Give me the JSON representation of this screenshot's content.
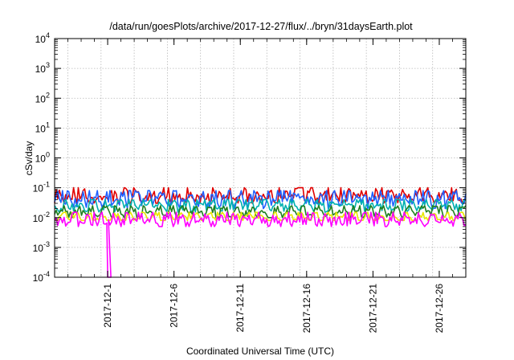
{
  "chart_data": {
    "type": "line",
    "title": "/data/run/goesPlots/archive/2017-12-27/flux/../bryn/31daysEarth.plot",
    "xlabel": "Coordinated Universal Time (UTC)",
    "ylabel": "cSv/day",
    "y_scale": "log",
    "ylim": [
      0.0001,
      10000
    ],
    "xlim": [
      "2017-11-27",
      "2017-12-28"
    ],
    "grid": true,
    "x_ticks": [
      "2017-12-1",
      "2017-12-6",
      "2017-12-11",
      "2017-12-16",
      "2017-12-21",
      "2017-12-26"
    ],
    "y_ticks": [
      {
        "base": "10",
        "exp": "-4"
      },
      {
        "base": "10",
        "exp": "-3"
      },
      {
        "base": "10",
        "exp": "-2"
      },
      {
        "base": "10",
        "exp": "-1"
      },
      {
        "base": "10",
        "exp": "0"
      },
      {
        "base": "10",
        "exp": "1"
      },
      {
        "base": "10",
        "exp": "2"
      },
      {
        "base": "10",
        "exp": "3"
      },
      {
        "base": "10",
        "exp": "4"
      }
    ],
    "series": [
      {
        "color": "#e00000",
        "typical": 0.05,
        "range": [
          0.03,
          0.1
        ]
      },
      {
        "color": "#2060ff",
        "typical": 0.04,
        "range": [
          0.02,
          0.08
        ]
      },
      {
        "color": "#00b0b0",
        "typical": 0.025,
        "range": [
          0.015,
          0.04
        ]
      },
      {
        "color": "#208020",
        "typical": 0.015,
        "range": [
          0.01,
          0.025
        ]
      },
      {
        "color": "#e8e800",
        "typical": 0.01,
        "range": [
          0.008,
          0.015
        ]
      },
      {
        "color": "#ff00ff",
        "typical": 0.008,
        "range": [
          0.005,
          0.015
        ],
        "dropout": {
          "date": "2017-12-01",
          "min": 0.0001
        }
      }
    ]
  }
}
